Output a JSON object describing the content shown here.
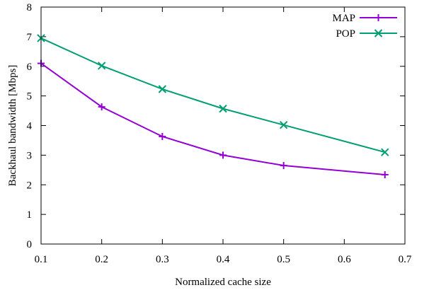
{
  "chart_data": {
    "type": "line",
    "title": "",
    "xlabel": "Normalized cache size",
    "ylabel": "Backhaul bandwidth [Mbps]",
    "xlim": [
      0.1,
      0.7
    ],
    "ylim": [
      0,
      8
    ],
    "xticks": [
      0.1,
      0.2,
      0.3,
      0.4,
      0.5,
      0.6,
      0.7
    ],
    "xtick_labels": [
      "0.1",
      "0.2",
      "0.3",
      "0.4",
      "0.5",
      "0.6",
      "0.7"
    ],
    "yticks": [
      0,
      1,
      2,
      3,
      4,
      5,
      6,
      7,
      8
    ],
    "ytick_labels": [
      "0",
      "1",
      "2",
      "3",
      "4",
      "5",
      "6",
      "7",
      "8"
    ],
    "grid": false,
    "legend_position": "top-right",
    "series": [
      {
        "name": "MAP",
        "color": "#9400d3",
        "marker": "plus",
        "x": [
          0.1,
          0.2,
          0.3,
          0.4,
          0.5,
          0.667
        ],
        "y": [
          6.1,
          4.63,
          3.63,
          3.0,
          2.65,
          2.34
        ]
      },
      {
        "name": "POP",
        "color": "#009e73",
        "marker": "cross",
        "x": [
          0.1,
          0.2,
          0.3,
          0.4,
          0.5,
          0.667
        ],
        "y": [
          6.95,
          6.02,
          5.23,
          4.57,
          4.02,
          3.1
        ]
      }
    ]
  }
}
